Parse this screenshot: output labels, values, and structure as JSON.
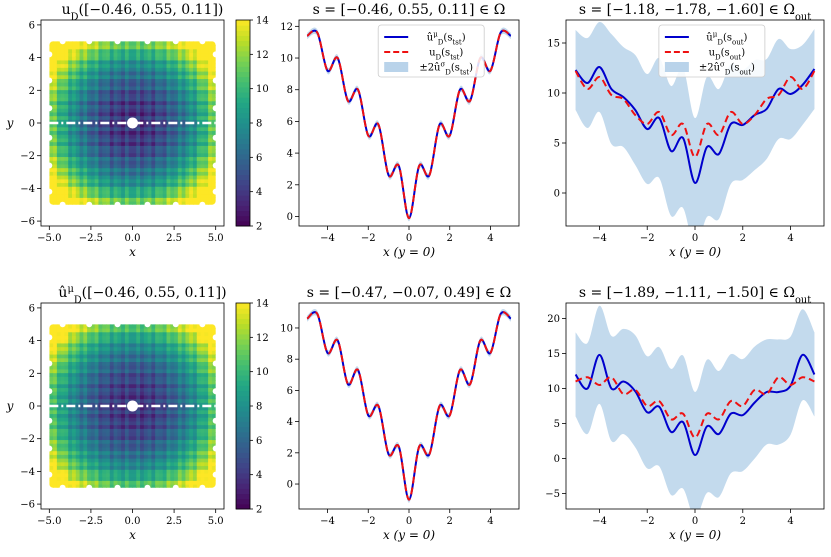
{
  "chart_data": [
    {
      "type": "heatmap",
      "title": "u_D([−0.46, 0.55, 0.11])",
      "xlabel": "x",
      "ylabel": "y",
      "xlim": [
        -5.5,
        5.5
      ],
      "ylim": [
        -6.3,
        6.3
      ],
      "xticks": [
        "−5.0",
        "−2.5",
        "0.0",
        "2.5",
        "5.0"
      ],
      "yticks": [
        "−6",
        "−4",
        "−2",
        "0",
        "2",
        "4",
        "6"
      ],
      "colorbar": {
        "min": 2,
        "max": 14,
        "ticks": [
          "2",
          "4",
          "6",
          "8",
          "10",
          "12",
          "14"
        ],
        "colormap": "viridis"
      },
      "amplitude": 1.0,
      "colors": {
        "slice_line": "#ffffff"
      }
    },
    {
      "type": "line",
      "title": "s = [−0.46, 0.55, 0.11] ∈ Ω",
      "xlabel": "x (y = 0)",
      "ylabel": "",
      "xlim": [
        -5.4,
        5.4
      ],
      "ylim": [
        -0.6,
        12.4
      ],
      "xticks": [
        -4,
        -2,
        0,
        2,
        4
      ],
      "yticks": [
        0,
        2,
        4,
        6,
        8,
        10,
        12
      ],
      "xtick_labels": [
        "−4",
        "−2",
        "0",
        "2",
        "4"
      ],
      "ytick_labels": [
        "0",
        "2",
        "4",
        "6",
        "8",
        "10",
        "12"
      ],
      "series": [
        {
          "name": "û^μ_D(s_tst)",
          "color": "#0000cc",
          "style": "solid",
          "x": [
            -5,
            -4.5,
            -4,
            -3.5,
            -3,
            -2.5,
            -2,
            -1.5,
            -1,
            -0.5,
            0,
            0.5,
            1,
            1.5,
            2,
            2.5,
            3,
            3.5,
            4,
            4.5,
            5
          ],
          "values": [
            11.4,
            11.6,
            9.2,
            10.0,
            7.3,
            8.0,
            5.1,
            5.8,
            2.6,
            3.2,
            -0.1,
            3.2,
            2.6,
            5.8,
            5.1,
            8.0,
            7.3,
            10.0,
            9.2,
            11.6,
            11.4
          ]
        },
        {
          "name": "u_D(s_tst)",
          "color": "#ee1111",
          "style": "dashed",
          "x": [
            -5,
            -4.5,
            -4,
            -3.5,
            -3,
            -2.5,
            -2,
            -1.5,
            -1,
            -0.5,
            0,
            0.5,
            1,
            1.5,
            2,
            2.5,
            3,
            3.5,
            4,
            4.5,
            5
          ],
          "values": [
            11.4,
            11.6,
            9.2,
            10.0,
            7.3,
            8.0,
            5.1,
            5.8,
            2.6,
            3.2,
            -0.1,
            3.2,
            2.6,
            5.8,
            5.1,
            8.0,
            7.3,
            10.0,
            9.2,
            11.6,
            11.4
          ]
        }
      ],
      "band": {
        "name": "±2û^σ_D(s_tst)",
        "color": "#b9d3ea",
        "halfwidth": [
          0.2,
          0.2,
          0.2,
          0.2,
          0.2,
          0.2,
          0.2,
          0.2,
          0.2,
          0.2,
          0.2,
          0.2,
          0.2,
          0.2,
          0.2,
          0.2,
          0.2,
          0.2,
          0.2,
          0.2,
          0.2
        ]
      },
      "legend": "top-center"
    },
    {
      "type": "line",
      "title": "s = [−1.18, −1.78, −1.60] ∈ Ω_out",
      "xlabel": "x (y = 0)",
      "ylabel": "",
      "xlim": [
        -5.4,
        5.4
      ],
      "ylim": [
        -3.3,
        17.3
      ],
      "xticks": [
        -4,
        -2,
        0,
        2,
        4
      ],
      "yticks": [
        0,
        5,
        10,
        15
      ],
      "xtick_labels": [
        "−4",
        "−2",
        "0",
        "2",
        "4"
      ],
      "ytick_labels": [
        "0",
        "5",
        "10",
        "15"
      ],
      "series": [
        {
          "name": "û^μ_D(s_out)",
          "color": "#0000cc",
          "style": "solid",
          "x": [
            -5,
            -4.5,
            -4,
            -3.5,
            -3,
            -2.5,
            -2,
            -1.5,
            -1,
            -0.5,
            0,
            0.5,
            1,
            1.5,
            2,
            2.5,
            3,
            3.5,
            4,
            4.5,
            5
          ],
          "values": [
            12.3,
            11.0,
            12.6,
            10.4,
            9.6,
            8.3,
            6.4,
            7.5,
            4.2,
            5.5,
            1.0,
            4.6,
            3.9,
            6.9,
            6.8,
            7.8,
            8.4,
            10.4,
            9.9,
            10.8,
            12.4
          ]
        },
        {
          "name": "u_D(s_out)",
          "color": "#ee1111",
          "style": "dashed",
          "x": [
            -5,
            -4.5,
            -4,
            -3.5,
            -3,
            -2.5,
            -2,
            -1.5,
            -1,
            -0.5,
            0,
            0.5,
            1,
            1.5,
            2,
            2.5,
            3,
            3.5,
            4,
            4.5,
            5
          ],
          "values": [
            12.2,
            10.4,
            11.6,
            9.8,
            9.4,
            7.8,
            6.9,
            8.1,
            5.8,
            6.9,
            3.6,
            6.9,
            5.8,
            8.1,
            6.9,
            7.8,
            9.4,
            9.8,
            11.6,
            10.4,
            12.2
          ]
        }
      ],
      "band": {
        "name": "±2û^σ_D(s_out)",
        "color": "#b9d3ea",
        "halfwidth": [
          4.0,
          4.5,
          4.5,
          5.5,
          5.0,
          5.5,
          5.5,
          6.0,
          6.5,
          7.0,
          6.5,
          7.0,
          6.5,
          6.0,
          5.5,
          5.5,
          5.0,
          5.0,
          4.5,
          4.0,
          4.0
        ]
      },
      "legend": "top-center"
    },
    {
      "type": "heatmap",
      "title": "û^μ_D([−0.46, 0.55, 0.11])",
      "xlabel": "x",
      "ylabel": "y",
      "xlim": [
        -5.5,
        5.5
      ],
      "ylim": [
        -6.3,
        6.3
      ],
      "xticks": [
        "−5.0",
        "−2.5",
        "0.0",
        "2.5",
        "5.0"
      ],
      "yticks": [
        "−6",
        "−4",
        "−2",
        "0",
        "2",
        "4",
        "6"
      ],
      "colorbar": {
        "min": 2,
        "max": 14,
        "ticks": [
          "2",
          "4",
          "6",
          "8",
          "10",
          "12",
          "14"
        ],
        "colormap": "viridis"
      },
      "amplitude": 0.9,
      "colors": {
        "slice_line": "#ffffff"
      }
    },
    {
      "type": "line",
      "title": "s = [−0.47, −0.07, 0.49] ∈ Ω",
      "xlabel": "x (y = 0)",
      "ylabel": "",
      "xlim": [
        -5.4,
        5.4
      ],
      "ylim": [
        -1.6,
        11.6
      ],
      "xticks": [
        -4,
        -2,
        0,
        2,
        4
      ],
      "yticks": [
        0,
        2,
        4,
        6,
        8,
        10
      ],
      "xtick_labels": [
        "−4",
        "−2",
        "0",
        "2",
        "4"
      ],
      "ytick_labels": [
        "0",
        "2",
        "4",
        "6",
        "8",
        "10"
      ],
      "series": [
        {
          "name": "û^μ_D(s_tst)",
          "color": "#0000cc",
          "style": "solid",
          "x": [
            -5,
            -4.5,
            -4,
            -3.5,
            -3,
            -2.5,
            -2,
            -1.5,
            -1,
            -0.5,
            0,
            0.5,
            1,
            1.5,
            2,
            2.5,
            3,
            3.5,
            4,
            4.5,
            5
          ],
          "values": [
            10.6,
            10.9,
            8.4,
            9.2,
            6.4,
            7.3,
            4.4,
            5.0,
            1.9,
            2.4,
            -1.0,
            2.4,
            1.9,
            5.0,
            4.4,
            7.3,
            6.4,
            9.2,
            8.4,
            10.9,
            10.6
          ]
        },
        {
          "name": "u_D(s_tst)",
          "color": "#ee1111",
          "style": "dashed",
          "x": [
            -5,
            -4.5,
            -4,
            -3.5,
            -3,
            -2.5,
            -2,
            -1.5,
            -1,
            -0.5,
            0,
            0.5,
            1,
            1.5,
            2,
            2.5,
            3,
            3.5,
            4,
            4.5,
            5
          ],
          "values": [
            10.6,
            10.9,
            8.4,
            9.2,
            6.4,
            7.3,
            4.4,
            5.0,
            1.9,
            2.4,
            -1.0,
            2.4,
            1.9,
            5.0,
            4.4,
            7.3,
            6.4,
            9.2,
            8.4,
            10.9,
            10.6
          ]
        }
      ],
      "band": {
        "name": "±2û^σ_D(s_tst)",
        "color": "#b9d3ea",
        "halfwidth": [
          0.2,
          0.2,
          0.2,
          0.2,
          0.2,
          0.2,
          0.2,
          0.2,
          0.2,
          0.2,
          0.2,
          0.2,
          0.2,
          0.2,
          0.2,
          0.2,
          0.2,
          0.2,
          0.2,
          0.2,
          0.2
        ]
      },
      "legend": "none"
    },
    {
      "type": "line",
      "title": "s = [−1.89, −1.11, −1.50] ∈ Ω_out",
      "xlabel": "x (y = 0)",
      "ylabel": "",
      "xlim": [
        -5.4,
        5.4
      ],
      "ylim": [
        -7.2,
        22.2
      ],
      "xticks": [
        -4,
        -2,
        0,
        2,
        4
      ],
      "yticks": [
        -5,
        0,
        5,
        10,
        15,
        20
      ],
      "xtick_labels": [
        "−4",
        "−2",
        "0",
        "2",
        "4"
      ],
      "ytick_labels": [
        "−5",
        "0",
        "5",
        "10",
        "15",
        "20"
      ],
      "series": [
        {
          "name": "û^μ_D(s_out)",
          "color": "#0000cc",
          "style": "solid",
          "x": [
            -5,
            -4.5,
            -4,
            -3.5,
            -3,
            -2.5,
            -2,
            -1.5,
            -1,
            -0.5,
            0,
            0.5,
            1,
            1.5,
            2,
            2.5,
            3,
            3.5,
            4,
            4.5,
            5
          ],
          "values": [
            12.0,
            10.0,
            14.8,
            10.0,
            11.0,
            9.6,
            6.6,
            7.4,
            3.8,
            5.2,
            0.5,
            4.6,
            3.5,
            6.4,
            6.2,
            8.0,
            9.5,
            9.5,
            10.4,
            14.8,
            12.0
          ]
        },
        {
          "name": "u_D(s_out)",
          "color": "#ee1111",
          "style": "dashed",
          "x": [
            -5,
            -4.5,
            -4,
            -3.5,
            -3,
            -2.5,
            -2,
            -1.5,
            -1,
            -0.5,
            0,
            0.5,
            1,
            1.5,
            2,
            2.5,
            3,
            3.5,
            4,
            4.5,
            5
          ],
          "values": [
            11.0,
            11.6,
            10.5,
            11.6,
            9.2,
            9.8,
            7.5,
            8.2,
            5.6,
            6.4,
            3.0,
            6.4,
            5.6,
            8.2,
            7.5,
            9.8,
            9.2,
            11.6,
            10.5,
            11.6,
            11.0
          ]
        }
      ],
      "band": {
        "name": "±2û^σ_D(s_out)",
        "color": "#b9d3ea",
        "halfwidth": [
          6.0,
          6.5,
          7.0,
          7.5,
          7.5,
          8.0,
          8.0,
          8.5,
          9.0,
          9.5,
          9.0,
          9.5,
          9.0,
          8.5,
          8.0,
          8.0,
          7.5,
          7.5,
          7.0,
          6.5,
          6.0
        ]
      },
      "legend": "none"
    }
  ]
}
